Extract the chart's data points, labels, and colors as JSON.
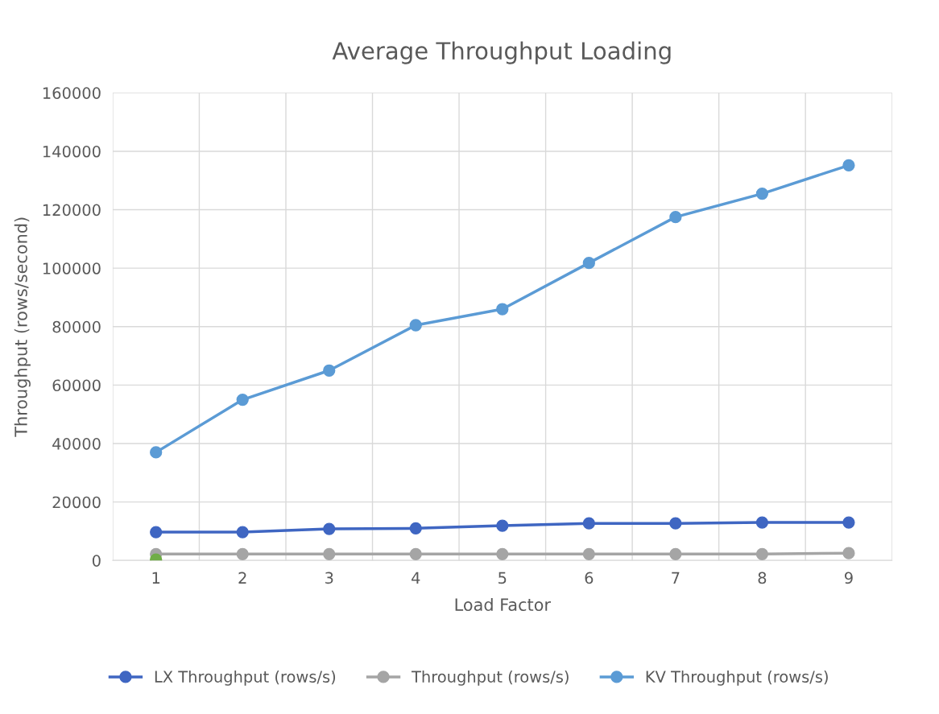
{
  "chart_data": {
    "type": "line",
    "title": "Average Throughput Loading",
    "xlabel": "Load Factor",
    "ylabel": "Throughput (rows/second)",
    "categories": [
      "1",
      "2",
      "3",
      "4",
      "5",
      "6",
      "7",
      "8",
      "9"
    ],
    "series": [
      {
        "name": "LX Throughput (rows/s)",
        "color": "#3f66c2",
        "values": [
          9700,
          9700,
          10800,
          11000,
          11900,
          12700,
          12700,
          13000,
          13000
        ]
      },
      {
        "name": "Throughput (rows/s)",
        "color": "#a5a5a5",
        "values": [
          2200,
          2200,
          2200,
          2200,
          2200,
          2200,
          2200,
          2200,
          2500
        ]
      },
      {
        "name": "KV Throughput (rows/s)",
        "color": "#5b9bd5",
        "values": [
          37000,
          55000,
          65000,
          80500,
          86000,
          101800,
          117500,
          125500,
          135200
        ]
      },
      {
        "type": "scatter",
        "color": "#70ad47",
        "values": [
          300,
          null,
          null,
          null,
          null,
          null,
          null,
          null,
          null
        ]
      }
    ],
    "ylim": [
      0,
      160000
    ],
    "yticks": [
      0,
      20000,
      40000,
      60000,
      80000,
      100000,
      120000,
      140000,
      160000
    ],
    "grid": true,
    "legend": "bottom",
    "marker": "circle",
    "line_style": "solid"
  }
}
